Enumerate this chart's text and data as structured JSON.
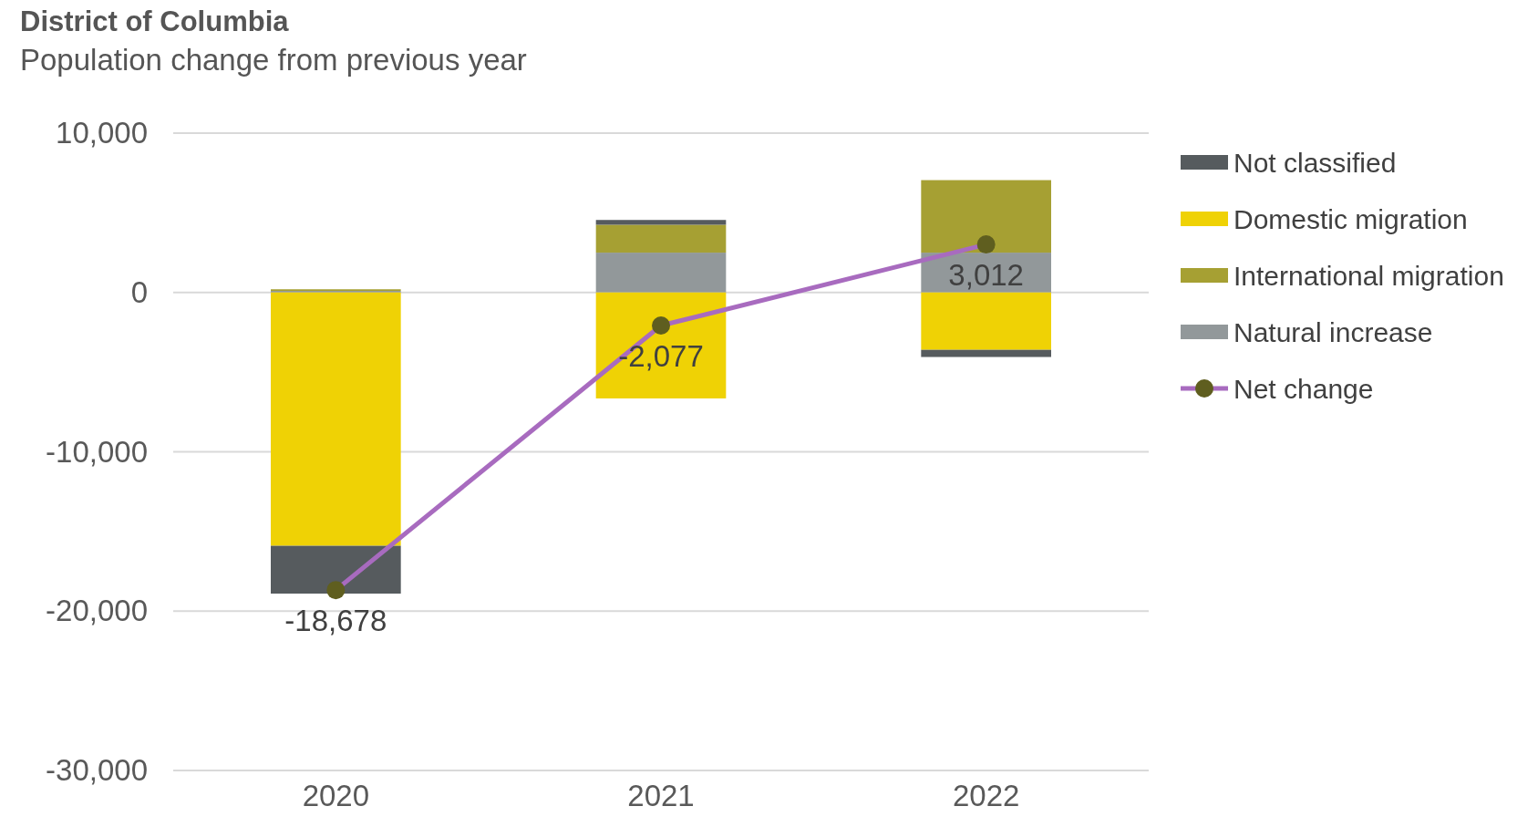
{
  "chart_data": {
    "type": "bar",
    "title": "District of Columbia",
    "subtitle": "Population change from previous year",
    "categories": [
      "2020",
      "2021",
      "2022"
    ],
    "stacked": true,
    "ylim": [
      -30000,
      10000
    ],
    "yticks": [
      {
        "value": -30000,
        "label": "-30,000"
      },
      {
        "value": -20000,
        "label": "-20,000"
      },
      {
        "value": -10000,
        "label": "-10,000"
      },
      0,
      {
        "value": 10000,
        "label": "10,000"
      }
    ],
    "grid": "y",
    "legend": "right",
    "series": [
      {
        "name": "Natural increase",
        "color": "#92989a",
        "values": [
          100,
          2500,
          2500
        ]
      },
      {
        "name": "International migration",
        "color": "#a6a033",
        "values": [
          100,
          1750,
          4550
        ]
      },
      {
        "name": "Domestic migration",
        "color": "#efd205",
        "values": [
          -15900,
          -6650,
          -3600
        ]
      },
      {
        "name": "Not classified",
        "color": "#565b5e",
        "values": [
          -3000,
          300,
          -450
        ]
      },
      {
        "name": "Net change",
        "type": "line",
        "color": "#a86bbf",
        "marker": "circle",
        "values": [
          -18678,
          -2077,
          3012
        ],
        "value_labels": [
          "-18,678",
          "-2,077",
          "3,012"
        ]
      }
    ]
  }
}
